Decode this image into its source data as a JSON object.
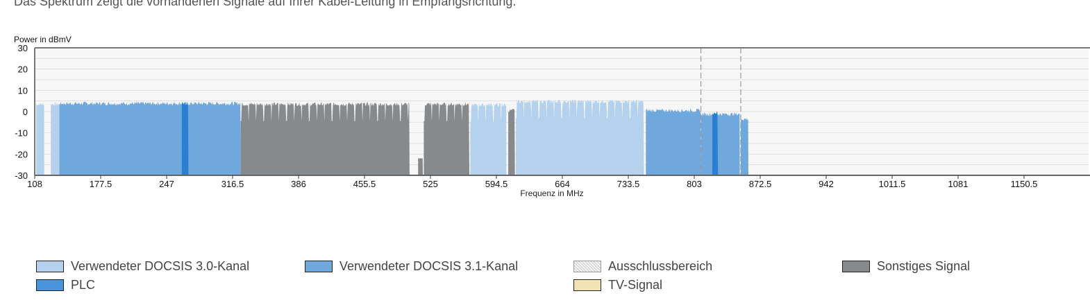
{
  "intro_text": "Das Spektrum zeigt die vorhandenen Signale auf Ihrer Kabel-Leitung in Empfangsrichtung.",
  "chart_data": {
    "type": "area",
    "title": "",
    "xlabel": "Frequenz in MHz",
    "ylabel": "Power in dBmV",
    "xlim": [
      108,
      1218
    ],
    "ylim": [
      -30,
      30
    ],
    "xticks": [
      "108",
      "177.5",
      "247",
      "316.5",
      "386",
      "455.5",
      "525",
      "594.5",
      "664",
      "733.5",
      "803",
      "872.5",
      "942",
      "1011.5",
      "1081",
      "1150.5"
    ],
    "yticks": [
      "30",
      "20",
      "10",
      "0",
      "-10",
      "-20",
      "-30"
    ],
    "grid": true,
    "grid_step": 5,
    "segments": [
      {
        "type": "docsis30",
        "start": 109.5,
        "end": 118,
        "level": 3.5,
        "channelized": false
      },
      {
        "type": "docsis30",
        "start": 125,
        "end": 134,
        "level": 3.5,
        "channelized": false
      },
      {
        "type": "docsis31",
        "start": 134,
        "end": 325,
        "level": 3.8,
        "channelized": false
      },
      {
        "type": "plc",
        "start": 263,
        "end": 270,
        "level": 3.8,
        "channelized": false
      },
      {
        "type": "other",
        "start": 325,
        "end": 503,
        "level": 3.5,
        "channelized": true
      },
      {
        "type": "other",
        "start": 512,
        "end": 517,
        "level": -22,
        "channelized": false
      },
      {
        "type": "other",
        "start": 518,
        "end": 566,
        "level": 3.5,
        "channelized": true
      },
      {
        "type": "docsis30",
        "start": 567,
        "end": 605,
        "level": 3.2,
        "channelized": true
      },
      {
        "type": "other",
        "start": 607,
        "end": 614,
        "level": 0.5,
        "channelized": false
      },
      {
        "type": "docsis30",
        "start": 615,
        "end": 750,
        "level": 4.8,
        "channelized": true
      },
      {
        "type": "docsis31",
        "start": 752,
        "end": 810,
        "level": 0.5,
        "channelized": false
      },
      {
        "type": "docsis31",
        "start": 810,
        "end": 851,
        "level": -1.2,
        "channelized": false
      },
      {
        "type": "plc",
        "start": 822,
        "end": 828,
        "level": -0.5,
        "channelized": false
      },
      {
        "type": "docsis31",
        "start": 852,
        "end": 860,
        "level": -3.5,
        "channelized": false
      }
    ],
    "exclusion_markers": [
      810,
      852
    ],
    "legend": [
      {
        "key": "docsis30",
        "label": "Verwendeter DOCSIS 3.0-Kanal"
      },
      {
        "key": "docsis31",
        "label": "Verwendeter DOCSIS 3.1-Kanal"
      },
      {
        "key": "exclusion",
        "label": "Ausschlussbereich"
      },
      {
        "key": "other",
        "label": "Sonstiges Signal"
      },
      {
        "key": "plc",
        "label": "PLC"
      },
      {
        "key": "tv",
        "label": "TV-Signal"
      }
    ],
    "colors": {
      "docsis30": "#b4d2ee",
      "docsis31": "#6fa8dd",
      "plc": "#2b7fd3",
      "other": "#878a8d",
      "tv": "#f3e2b3",
      "exclusion": "#e6e6e6",
      "plc_legend": "#4a94dc"
    }
  }
}
